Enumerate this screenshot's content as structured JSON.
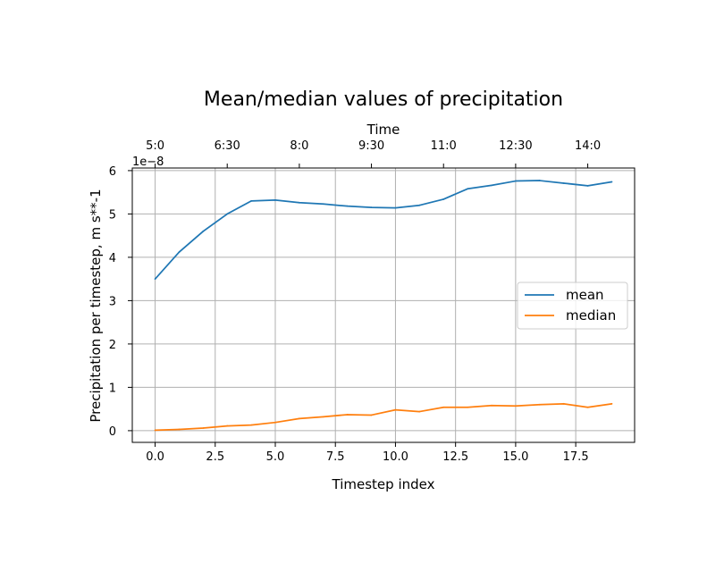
{
  "chart_data": {
    "type": "line",
    "title": "Mean/median values of precipitation",
    "xlabel": "Timestep index",
    "ylabel": "Precipitation per timestep, m s**-1",
    "top_xlabel": "Time",
    "y_offset_text": "1e−8",
    "xlim": [
      -0.95,
      19.95
    ],
    "ylim": [
      -0.27,
      6.06
    ],
    "x_ticks": [
      0,
      2.5,
      5,
      7.5,
      10,
      12.5,
      15,
      17.5
    ],
    "x_tick_labels": [
      "0.0",
      "2.5",
      "5.0",
      "7.5",
      "10.0",
      "12.5",
      "15.0",
      "17.5"
    ],
    "y_ticks": [
      0,
      1,
      2,
      3,
      4,
      5,
      6
    ],
    "y_tick_labels": [
      "0",
      "1",
      "2",
      "3",
      "4",
      "5",
      "6"
    ],
    "top_ticks": [
      0,
      3,
      6,
      9,
      12,
      15,
      18
    ],
    "top_tick_labels": [
      "5:0",
      "6:30",
      "8:0",
      "9:30",
      "11:0",
      "12:30",
      "14:0"
    ],
    "grid": true,
    "legend_position": "center-right",
    "x": [
      0,
      1,
      2,
      3,
      4,
      5,
      6,
      7,
      8,
      9,
      10,
      11,
      12,
      13,
      14,
      15,
      16,
      17,
      18,
      19
    ],
    "series": [
      {
        "name": "mean",
        "color": "#1f77b4",
        "values": [
          3.5,
          4.12,
          4.6,
          5.0,
          5.3,
          5.32,
          5.26,
          5.23,
          5.18,
          5.15,
          5.14,
          5.2,
          5.34,
          5.58,
          5.66,
          5.76,
          5.77,
          5.71,
          5.65,
          5.74
        ]
      },
      {
        "name": "median",
        "color": "#ff7f0e",
        "values": [
          0.01,
          0.03,
          0.06,
          0.11,
          0.13,
          0.19,
          0.28,
          0.32,
          0.37,
          0.36,
          0.48,
          0.44,
          0.54,
          0.54,
          0.58,
          0.57,
          0.6,
          0.62,
          0.54,
          0.62
        ]
      }
    ]
  }
}
